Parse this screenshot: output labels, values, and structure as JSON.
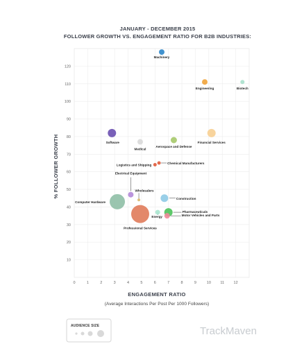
{
  "chart_data": {
    "type": "scatter",
    "title": "JANUARY - DECEMBER 2015",
    "subtitle": "FOLLOWER GROWTH VS. ENGAGEMENT RATIO FOR B2B INDUSTRIES:",
    "xlabel": "ENGAGEMENT RATIO",
    "xsublabel": "(Average Interactions Per Post Per 1000 Followers)",
    "ylabel": "% FOLLOWER GROWTH",
    "xlim": [
      0,
      13
    ],
    "ylim": [
      0,
      130
    ],
    "xticks": [
      0,
      1,
      2,
      3,
      4,
      5,
      6,
      7,
      8,
      9,
      10,
      11,
      12
    ],
    "yticks": [
      10,
      20,
      30,
      40,
      50,
      60,
      70,
      80,
      90,
      100,
      110,
      120
    ],
    "grid": true,
    "points": [
      {
        "name": "Machinery",
        "x": 6.5,
        "y": 128,
        "size": 4,
        "color": "#2e86c9"
      },
      {
        "name": "Engineering",
        "x": 9.7,
        "y": 111,
        "size": 4,
        "color": "#f0a33a"
      },
      {
        "name": "Biotech",
        "x": 12.5,
        "y": 111,
        "size": 3,
        "color": "#a8e0cc"
      },
      {
        "name": "Software",
        "x": 2.8,
        "y": 82,
        "size": 6,
        "color": "#6a4fb0"
      },
      {
        "name": "Medical",
        "x": 4.9,
        "y": 77,
        "size": 4,
        "color": "#d9d9d9"
      },
      {
        "name": "Aerospace and Defense",
        "x": 7.4,
        "y": 78,
        "size": 4.5,
        "color": "#a6c96a"
      },
      {
        "name": "Financial Services",
        "x": 10.2,
        "y": 82,
        "size": 6,
        "color": "#f7cf92"
      },
      {
        "name": "Chemical Manufacturers",
        "x": 6.3,
        "y": 65,
        "size": 2.5,
        "color": "#e05a3a"
      },
      {
        "name": "Logistics and Shipping",
        "x": 6.0,
        "y": 64,
        "size": 2.5,
        "color": "#e05a3a"
      },
      {
        "name": "Electrical Equipment",
        "x": 4.2,
        "y": 47,
        "size": 4,
        "color": "#b48ad9"
      },
      {
        "name": "Wholesalers",
        "x": 4.8,
        "y": 44,
        "size": 2,
        "color": "#d9b86a"
      },
      {
        "name": "Computer Hardware",
        "x": 3.2,
        "y": 43,
        "size": 11,
        "color": "#8fbfa6"
      },
      {
        "name": "Construction",
        "x": 6.7,
        "y": 45,
        "size": 5.5,
        "color": "#8ecae6"
      },
      {
        "name": "Professional Services",
        "x": 4.9,
        "y": 36,
        "size": 13,
        "color": "#e07b5a"
      },
      {
        "name": "Energy",
        "x": 6.2,
        "y": 37,
        "size": 3.5,
        "color": "#a8e6cf"
      },
      {
        "name": "Pharmaceuticals",
        "x": 7.0,
        "y": 37,
        "size": 6,
        "color": "#4cc25a"
      },
      {
        "name": "Motor Vehicles and Parts",
        "x": 6.9,
        "y": 35,
        "size": 4,
        "color": "#f08a9a"
      }
    ]
  },
  "legend": {
    "title": "AUDIENCE SIZE"
  },
  "brand": {
    "name": "TrackMaven"
  }
}
